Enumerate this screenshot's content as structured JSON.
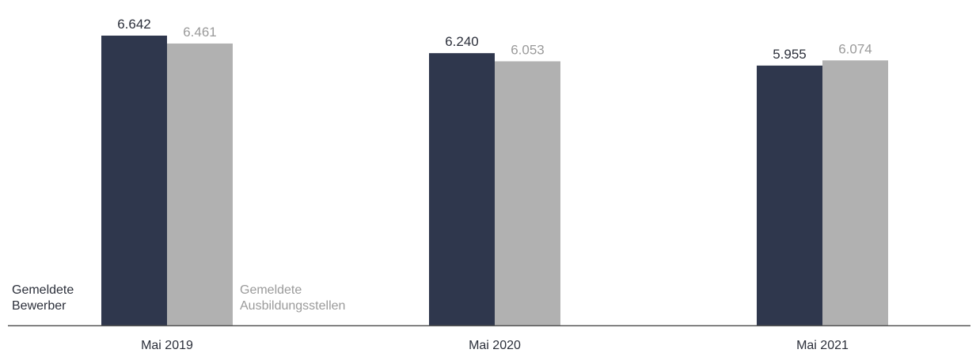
{
  "chart_data": {
    "type": "bar",
    "title": "",
    "xlabel": "",
    "ylabel": "",
    "categories": [
      "Mai 2019",
      "Mai 2020",
      "Mai 2021"
    ],
    "series": [
      {
        "name": "Gemeldete Bewerber",
        "name_lines": [
          "Gemeldete",
          "Bewerber"
        ],
        "values": [
          6642,
          6240,
          5955
        ],
        "value_labels": [
          "6.642",
          "6.240",
          "5.955"
        ],
        "color": "#2f374d",
        "label_color": "#2b2f3a"
      },
      {
        "name": "Gemeldete Ausbildungsstellen",
        "name_lines": [
          "Gemeldete",
          "Ausbildungsstellen"
        ],
        "values": [
          6461,
          6053,
          6074
        ],
        "value_labels": [
          "6.461",
          "6.053",
          "6.074"
        ],
        "color": "#b1b1b1",
        "label_color": "#9a9a9a"
      }
    ],
    "ylim": [
      0,
      6642
    ],
    "grid": false,
    "legend": "inline labels next to the first group of bars",
    "axis_color": "#555555",
    "category_label_color": "#2b2f3a"
  }
}
